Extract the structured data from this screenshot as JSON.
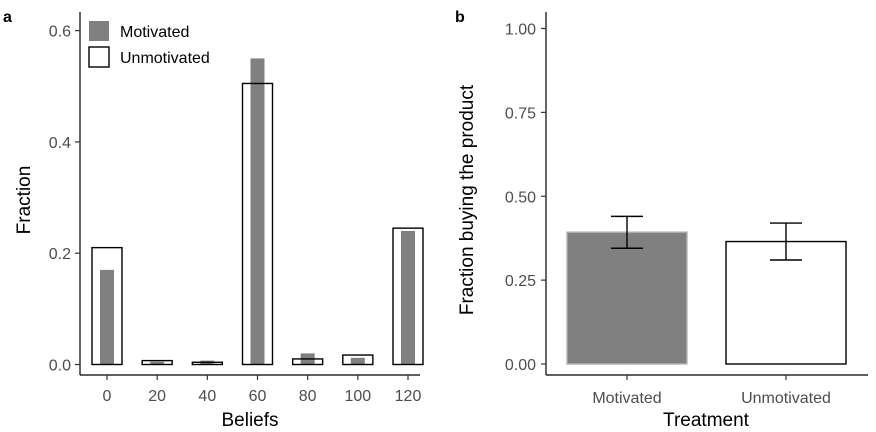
{
  "chart_data": [
    {
      "panel_label": "a",
      "type": "bar",
      "xlabel": "Beliefs",
      "ylabel": "Fraction",
      "categories": [
        "0",
        "20",
        "40",
        "60",
        "80",
        "100",
        "120"
      ],
      "x": [
        0,
        20,
        40,
        60,
        80,
        100,
        120
      ],
      "ylim": [
        0,
        0.62
      ],
      "y_ticks": [
        "0.0",
        "0.2",
        "0.4",
        "0.6"
      ],
      "y_tick_values": [
        0.0,
        0.2,
        0.4,
        0.6
      ],
      "series": [
        {
          "name": "Motivated",
          "values": [
            0.17,
            0.005,
            0.007,
            0.55,
            0.02,
            0.012,
            0.24
          ],
          "color": "#808080",
          "style": "filled"
        },
        {
          "name": "Unmotivated",
          "values": [
            0.21,
            0.007,
            0.004,
            0.505,
            0.01,
            0.017,
            0.245
          ],
          "color": "#000000",
          "style": "outline"
        }
      ],
      "legend": {
        "position": "top-left",
        "entries": [
          "Motivated",
          "Unmotivated"
        ]
      },
      "grid": false
    },
    {
      "panel_label": "b",
      "type": "bar",
      "xlabel": "Treatment",
      "ylabel": "Fraction buying the product",
      "categories": [
        "Motivated",
        "Unmotivated"
      ],
      "values": [
        0.393,
        0.365
      ],
      "error_low": [
        0.345,
        0.31
      ],
      "error_high": [
        0.44,
        0.42
      ],
      "fills": [
        "#808080",
        "#ffffff"
      ],
      "ylim": [
        0,
        1.05
      ],
      "y_ticks": [
        "0.00",
        "0.25",
        "0.50",
        "0.75",
        "1.00"
      ],
      "y_tick_values": [
        0.0,
        0.25,
        0.5,
        0.75,
        1.0
      ],
      "grid": false
    }
  ]
}
